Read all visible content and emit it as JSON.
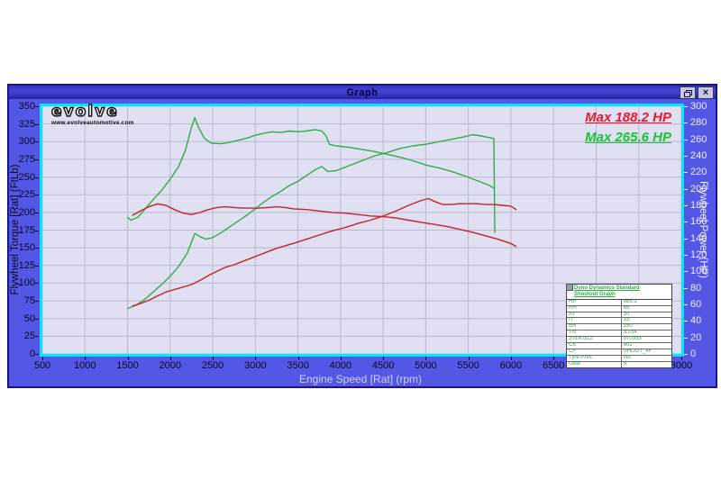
{
  "window": {
    "title": "Graph",
    "buttons": {
      "restore": "restore-window",
      "close": "×"
    }
  },
  "logo": {
    "brand": "evolve",
    "url_text": "www.evolveautomotive.com"
  },
  "annotations": {
    "max_red": "Max 188.2 HP",
    "max_green": "Max 265.6 HP"
  },
  "colors": {
    "red_curve": "#c7222c",
    "green_curve": "#2fae46",
    "red_label": "#e8192c",
    "green_label": "#17c434",
    "grid": "#b9b9d2",
    "plot_bg": "#e0e0f2",
    "window_bg": "#5457e5",
    "plot_border": "#00eaff"
  },
  "chart_data": {
    "type": "line",
    "xlabel": "Engine Speed [Rat] (rpm)",
    "ylabel_left": "Flywheel Torque [Rat] (FtLb)",
    "ylabel_right": "Flywheel Power (HP)",
    "xlim": [
      500,
      8000
    ],
    "ylim_left": [
      0,
      350
    ],
    "ylim_right": [
      0,
      300
    ],
    "grid": true,
    "x_ticks": [
      500,
      1000,
      1500,
      2000,
      2500,
      3000,
      3500,
      4000,
      4500,
      5000,
      5500,
      6000,
      6500,
      7000,
      7500,
      8000
    ],
    "y_ticks_left": [
      0,
      25,
      50,
      75,
      100,
      125,
      150,
      175,
      200,
      225,
      250,
      275,
      300,
      325,
      350
    ],
    "y_ticks_right": [
      0,
      20,
      40,
      60,
      80,
      100,
      120,
      140,
      160,
      180,
      200,
      220,
      240,
      260,
      280,
      300
    ],
    "series": [
      {
        "name": "torque-green-run",
        "axis": "left",
        "color": "#2fae46",
        "max": 335,
        "points": [
          [
            1500,
            193
          ],
          [
            1540,
            189
          ],
          [
            1620,
            193
          ],
          [
            1700,
            204
          ],
          [
            1800,
            218
          ],
          [
            1900,
            231
          ],
          [
            2000,
            247
          ],
          [
            2100,
            265
          ],
          [
            2180,
            288
          ],
          [
            2250,
            320
          ],
          [
            2290,
            334
          ],
          [
            2330,
            321
          ],
          [
            2400,
            305
          ],
          [
            2480,
            298
          ],
          [
            2600,
            297
          ],
          [
            2700,
            299
          ],
          [
            2800,
            302
          ],
          [
            2900,
            305
          ],
          [
            3000,
            309
          ],
          [
            3100,
            312
          ],
          [
            3200,
            314
          ],
          [
            3300,
            313
          ],
          [
            3400,
            315
          ],
          [
            3500,
            314
          ],
          [
            3600,
            315
          ],
          [
            3700,
            317
          ],
          [
            3780,
            315
          ],
          [
            3830,
            308
          ],
          [
            3870,
            296
          ],
          [
            3950,
            294
          ],
          [
            4100,
            292
          ],
          [
            4250,
            289
          ],
          [
            4400,
            286
          ],
          [
            4550,
            282
          ],
          [
            4700,
            278
          ],
          [
            4850,
            273
          ],
          [
            5000,
            267
          ],
          [
            5150,
            263
          ],
          [
            5300,
            258
          ],
          [
            5450,
            252
          ],
          [
            5600,
            245
          ],
          [
            5750,
            238
          ],
          [
            5800,
            234
          ]
        ]
      },
      {
        "name": "power-green-run",
        "axis": "right",
        "color": "#2fae46",
        "max": 265.6,
        "points": [
          [
            1500,
            55
          ],
          [
            1600,
            59
          ],
          [
            1700,
            66
          ],
          [
            1800,
            75
          ],
          [
            1900,
            84
          ],
          [
            2000,
            94
          ],
          [
            2100,
            106
          ],
          [
            2200,
            122
          ],
          [
            2290,
            146
          ],
          [
            2350,
            142
          ],
          [
            2420,
            139
          ],
          [
            2500,
            141
          ],
          [
            2600,
            147
          ],
          [
            2700,
            154
          ],
          [
            2800,
            161
          ],
          [
            2900,
            168
          ],
          [
            3000,
            176
          ],
          [
            3100,
            184
          ],
          [
            3200,
            191
          ],
          [
            3300,
            197
          ],
          [
            3400,
            204
          ],
          [
            3500,
            209
          ],
          [
            3600,
            216
          ],
          [
            3700,
            223
          ],
          [
            3780,
            227
          ],
          [
            3850,
            221
          ],
          [
            3950,
            222
          ],
          [
            4100,
            228
          ],
          [
            4250,
            234
          ],
          [
            4400,
            240
          ],
          [
            4550,
            244
          ],
          [
            4700,
            249
          ],
          [
            4850,
            252
          ],
          [
            5000,
            254
          ],
          [
            5150,
            257
          ],
          [
            5300,
            260
          ],
          [
            5450,
            263
          ],
          [
            5550,
            265.6
          ],
          [
            5650,
            264
          ],
          [
            5750,
            262
          ],
          [
            5800,
            261
          ],
          [
            5810,
            147
          ]
        ]
      },
      {
        "name": "torque-red-run",
        "axis": "left",
        "color": "#c7222c",
        "max": 212,
        "points": [
          [
            1560,
            196
          ],
          [
            1650,
            202
          ],
          [
            1750,
            208
          ],
          [
            1850,
            212
          ],
          [
            1950,
            210
          ],
          [
            2050,
            204
          ],
          [
            2150,
            199
          ],
          [
            2250,
            197
          ],
          [
            2350,
            200
          ],
          [
            2450,
            204
          ],
          [
            2550,
            207
          ],
          [
            2650,
            208
          ],
          [
            2750,
            207
          ],
          [
            2850,
            206
          ],
          [
            2950,
            206
          ],
          [
            3050,
            206
          ],
          [
            3150,
            207
          ],
          [
            3250,
            208
          ],
          [
            3350,
            207
          ],
          [
            3450,
            205
          ],
          [
            3600,
            204
          ],
          [
            3750,
            202
          ],
          [
            3900,
            200
          ],
          [
            4050,
            199
          ],
          [
            4200,
            197
          ],
          [
            4350,
            195
          ],
          [
            4500,
            194
          ],
          [
            4650,
            192
          ],
          [
            4800,
            189
          ],
          [
            4950,
            186
          ],
          [
            5100,
            183
          ],
          [
            5250,
            180
          ],
          [
            5400,
            176
          ],
          [
            5550,
            172
          ],
          [
            5700,
            167
          ],
          [
            5850,
            162
          ],
          [
            6000,
            156
          ],
          [
            6060,
            152
          ]
        ]
      },
      {
        "name": "power-red-run",
        "axis": "right",
        "color": "#c7222c",
        "max": 188.2,
        "points": [
          [
            1560,
            58
          ],
          [
            1650,
            61
          ],
          [
            1750,
            65
          ],
          [
            1850,
            70
          ],
          [
            1950,
            75
          ],
          [
            2050,
            78
          ],
          [
            2150,
            81
          ],
          [
            2250,
            84
          ],
          [
            2350,
            89
          ],
          [
            2450,
            95
          ],
          [
            2550,
            100
          ],
          [
            2650,
            105
          ],
          [
            2750,
            108
          ],
          [
            2850,
            112
          ],
          [
            2950,
            116
          ],
          [
            3050,
            120
          ],
          [
            3150,
            124
          ],
          [
            3250,
            128
          ],
          [
            3350,
            131
          ],
          [
            3450,
            134
          ],
          [
            3600,
            139
          ],
          [
            3750,
            144
          ],
          [
            3900,
            149
          ],
          [
            4050,
            153
          ],
          [
            4200,
            158
          ],
          [
            4350,
            162
          ],
          [
            4500,
            167
          ],
          [
            4650,
            173
          ],
          [
            4800,
            180
          ],
          [
            4950,
            186
          ],
          [
            5030,
            188.2
          ],
          [
            5120,
            184
          ],
          [
            5200,
            181
          ],
          [
            5300,
            181
          ],
          [
            5400,
            182
          ],
          [
            5500,
            182
          ],
          [
            5600,
            182
          ],
          [
            5700,
            181
          ],
          [
            5800,
            181
          ],
          [
            5900,
            180
          ],
          [
            6000,
            179
          ],
          [
            6060,
            175
          ]
        ]
      }
    ]
  },
  "info_table": {
    "header_line1": "Dyno Dynamics Standard",
    "header_line2": "Shootout Graph",
    "rows": [
      [
        "RP",
        "985.1"
      ],
      [
        "RH",
        "65"
      ],
      [
        "AT",
        "10"
      ],
      [
        "IT",
        "15"
      ],
      [
        "BR",
        "150"
      ],
      [
        "TN",
        "3.234"
      ],
      [
        "20190312",
        "070353"
      ],
      [
        "CK",
        "802"
      ],
      [
        "CF",
        "SHOOT_4F"
      ],
      [
        "Tyre Pres.",
        "std"
      ],
      [
        "Gear",
        "5"
      ]
    ]
  }
}
